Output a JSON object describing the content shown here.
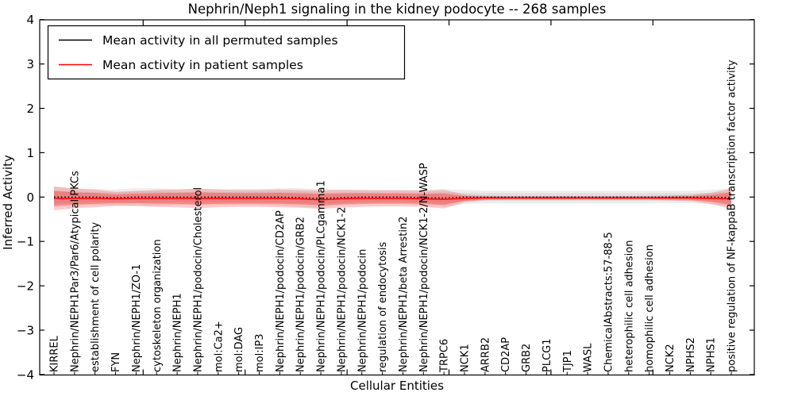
{
  "chart_data": {
    "type": "line",
    "title": "Nephrin/Neph1 signaling in the kidney podocyte -- 268 samples",
    "xlabel": "Cellular Entities",
    "ylabel": "Inferred Activity",
    "ylim": [
      -4,
      4
    ],
    "yticks": [
      -4,
      -3,
      -2,
      -1,
      0,
      1,
      2,
      3,
      4
    ],
    "grid": false,
    "legend_position": "upper-left",
    "categories": [
      "KIRREL",
      "Nephrin/NEPH1Par3/Par6/Atypical PKCs",
      "establishment of cell polarity",
      "FYN",
      "Nephrin/NEPH1/ZO-1",
      "cytoskeleton organization",
      "Nephrin/NEPH1",
      "Nephrin/NEPH1/podocin/Cholesterol",
      "mol:Ca2+",
      "mol:DAG",
      "mol:IP3",
      "Nephrin/NEPH1/podocin/CD2AP",
      "Nephrin/NEPH1/podocin/GRB2",
      "Nephrin/NEPH1/podocin/PLCgamma1",
      "Nephrin/NEPH1/podocin/NCK1-2",
      "Nephrin/NEPH1/podocin",
      "regulation of endocytosis",
      "Nephrin/NEPH1/beta Arrestin2",
      "Nephrin/NEPH1/podocin/NCK1-2/N-WASP",
      "TRPC6",
      "NCK1",
      "ARRB2",
      "CD2AP",
      "GRB2",
      "PLCG1",
      "TJP1",
      "WASL",
      "ChemicalAbstracts:57-88-5",
      "heterophilic cell adhesion",
      "homophilic cell adhesion",
      "NCK2",
      "NPHS2",
      "NPHS1",
      "positive regulation of NF-kappaB transcription factor activity"
    ],
    "series": [
      {
        "name": "Mean activity in all permuted samples",
        "color": "#000000",
        "style": "dotted",
        "values": [
          0,
          0,
          0,
          -0.01,
          0,
          0,
          0,
          0,
          0,
          0,
          0,
          0,
          -0.01,
          -0.03,
          -0.01,
          0,
          0,
          0,
          -0.01,
          -0.02,
          0,
          0,
          0,
          0,
          0,
          0,
          0,
          0,
          0,
          0,
          0,
          0,
          0,
          -0.01
        ]
      },
      {
        "name": "Mean activity in patient samples",
        "color": "#ff0000",
        "style": "solid",
        "values": [
          -0.03,
          -0.03,
          -0.03,
          -0.04,
          -0.03,
          -0.03,
          -0.03,
          -0.03,
          -0.03,
          -0.03,
          -0.03,
          -0.03,
          -0.04,
          -0.06,
          -0.04,
          -0.03,
          -0.03,
          -0.03,
          -0.04,
          -0.05,
          -0.03,
          -0.02,
          -0.02,
          -0.02,
          -0.02,
          -0.02,
          -0.02,
          -0.02,
          -0.02,
          -0.02,
          -0.02,
          -0.02,
          -0.03,
          -0.04
        ]
      }
    ],
    "bands": [
      {
        "name": "permuted-samples-range",
        "color": "#808080",
        "half_widths": [
          0.23,
          0.2,
          0.18,
          0.18,
          0.2,
          0.2,
          0.18,
          0.18,
          0.18,
          0.18,
          0.18,
          0.2,
          0.21,
          0.21,
          0.18,
          0.16,
          0.16,
          0.16,
          0.18,
          0.2,
          0.16,
          0.14,
          0.14,
          0.14,
          0.14,
          0.14,
          0.14,
          0.14,
          0.14,
          0.14,
          0.14,
          0.14,
          0.16,
          0.21
        ]
      },
      {
        "name": "patient-samples-range",
        "color": "#ff0000",
        "half_widths": [
          0.27,
          0.22,
          0.2,
          0.16,
          0.17,
          0.19,
          0.2,
          0.22,
          0.2,
          0.19,
          0.19,
          0.2,
          0.2,
          0.21,
          0.2,
          0.19,
          0.18,
          0.18,
          0.18,
          0.21,
          0.09,
          0.05,
          0.045,
          0.045,
          0.045,
          0.045,
          0.045,
          0.045,
          0.045,
          0.045,
          0.055,
          0.07,
          0.125,
          0.23
        ]
      }
    ]
  }
}
